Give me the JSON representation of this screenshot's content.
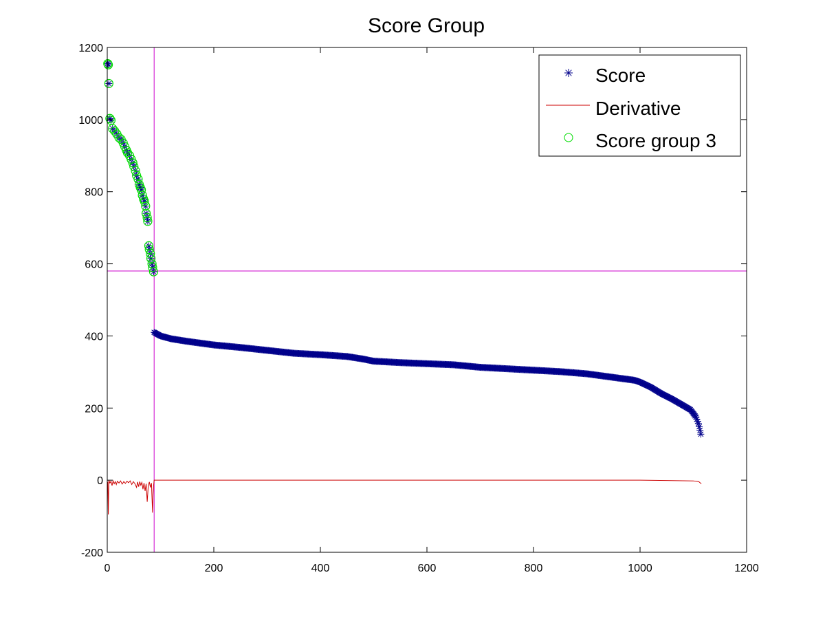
{
  "chart_data": {
    "type": "scatter",
    "title": "Score Group",
    "xlabel": "",
    "ylabel": "",
    "xlim": [
      0,
      1200
    ],
    "ylim": [
      -200,
      1200
    ],
    "x_ticks": [
      0,
      200,
      400,
      600,
      800,
      1000,
      1200
    ],
    "y_ticks": [
      -200,
      0,
      200,
      400,
      600,
      800,
      1000,
      1200
    ],
    "grid": false,
    "legend_position": "top-right",
    "colors": {
      "score": "#00008b",
      "derivative": "#cc0000",
      "group": "#00dd00",
      "threshold": "#cc00cc"
    },
    "reference_lines": {
      "vertical_x": 88,
      "horizontal_y": 580
    },
    "series": [
      {
        "name": "Score",
        "marker": "asterisk",
        "segments": [
          {
            "x_start": 1,
            "x_end": 87,
            "points": [
              [
                1,
                1155
              ],
              [
                2,
                1152
              ],
              [
                3,
                1100
              ],
              [
                5,
                1003
              ],
              [
                7,
                998
              ],
              [
                10,
                975
              ],
              [
                14,
                968
              ],
              [
                18,
                960
              ],
              [
                22,
                950
              ],
              [
                26,
                945
              ],
              [
                30,
                935
              ],
              [
                33,
                925
              ],
              [
                36,
                915
              ],
              [
                38,
                908
              ],
              [
                42,
                900
              ],
              [
                45,
                890
              ],
              [
                48,
                880
              ],
              [
                50,
                870
              ],
              [
                53,
                858
              ],
              [
                55,
                845
              ],
              [
                58,
                835
              ],
              [
                60,
                820
              ],
              [
                62,
                812
              ],
              [
                64,
                805
              ],
              [
                66,
                790
              ],
              [
                68,
                780
              ],
              [
                70,
                773
              ],
              [
                72,
                760
              ],
              [
                73,
                740
              ],
              [
                75,
                728
              ],
              [
                76,
                718
              ],
              [
                78,
                650
              ],
              [
                79,
                640
              ],
              [
                81,
                628
              ],
              [
                82,
                615
              ],
              [
                84,
                600
              ],
              [
                85,
                590
              ],
              [
                87,
                578
              ]
            ]
          },
          {
            "x_start": 88,
            "x_end": 1115,
            "points": [
              [
                88,
                410
              ],
              [
                100,
                400
              ],
              [
                120,
                392
              ],
              [
                150,
                385
              ],
              [
                200,
                375
              ],
              [
                250,
                368
              ],
              [
                300,
                360
              ],
              [
                350,
                352
              ],
              [
                400,
                348
              ],
              [
                450,
                343
              ],
              [
                480,
                336
              ],
              [
                500,
                330
              ],
              [
                550,
                326
              ],
              [
                600,
                323
              ],
              [
                650,
                320
              ],
              [
                700,
                313
              ],
              [
                750,
                309
              ],
              [
                800,
                305
              ],
              [
                850,
                301
              ],
              [
                900,
                295
              ],
              [
                950,
                285
              ],
              [
                990,
                277
              ],
              [
                1000,
                272
              ],
              [
                1020,
                258
              ],
              [
                1040,
                240
              ],
              [
                1060,
                225
              ],
              [
                1080,
                208
              ],
              [
                1095,
                195
              ],
              [
                1105,
                175
              ],
              [
                1110,
                155
              ],
              [
                1113,
                135
              ],
              [
                1115,
                120
              ]
            ]
          }
        ]
      },
      {
        "name": "Derivative",
        "marker": "line",
        "points": [
          [
            1,
            -5
          ],
          [
            2,
            -95
          ],
          [
            3,
            0
          ],
          [
            5,
            -8
          ],
          [
            7,
            -3
          ],
          [
            9,
            -15
          ],
          [
            11,
            -2
          ],
          [
            13,
            -10
          ],
          [
            15,
            -4
          ],
          [
            17,
            -12
          ],
          [
            19,
            -3
          ],
          [
            22,
            -8
          ],
          [
            25,
            -2
          ],
          [
            28,
            -11
          ],
          [
            31,
            -4
          ],
          [
            34,
            -9
          ],
          [
            37,
            -3
          ],
          [
            40,
            -7
          ],
          [
            43,
            -2
          ],
          [
            46,
            -12
          ],
          [
            49,
            -4
          ],
          [
            52,
            -10
          ],
          [
            55,
            -20
          ],
          [
            57,
            -5
          ],
          [
            59,
            -18
          ],
          [
            61,
            -4
          ],
          [
            63,
            -14
          ],
          [
            65,
            -6
          ],
          [
            67,
            -25
          ],
          [
            69,
            -8
          ],
          [
            71,
            -30
          ],
          [
            73,
            -10
          ],
          [
            75,
            -60
          ],
          [
            77,
            -15
          ],
          [
            79,
            -5
          ],
          [
            81,
            -20
          ],
          [
            83,
            -8
          ],
          [
            85,
            -90
          ],
          [
            86,
            -40
          ],
          [
            87,
            -15
          ],
          [
            88,
            0
          ],
          [
            200,
            0
          ],
          [
            400,
            0
          ],
          [
            600,
            0
          ],
          [
            800,
            0
          ],
          [
            1000,
            0
          ],
          [
            1050,
            -1
          ],
          [
            1100,
            -2
          ],
          [
            1110,
            -4
          ],
          [
            1115,
            -10
          ]
        ]
      },
      {
        "name": "Score group 3",
        "marker": "circle",
        "points": [
          [
            1,
            1155
          ],
          [
            2,
            1152
          ],
          [
            3,
            1100
          ],
          [
            5,
            1003
          ],
          [
            7,
            998
          ],
          [
            10,
            975
          ],
          [
            14,
            968
          ],
          [
            18,
            960
          ],
          [
            22,
            950
          ],
          [
            26,
            945
          ],
          [
            30,
            935
          ],
          [
            33,
            925
          ],
          [
            36,
            915
          ],
          [
            38,
            908
          ],
          [
            42,
            900
          ],
          [
            45,
            890
          ],
          [
            48,
            880
          ],
          [
            50,
            870
          ],
          [
            53,
            858
          ],
          [
            55,
            845
          ],
          [
            58,
            835
          ],
          [
            60,
            820
          ],
          [
            62,
            812
          ],
          [
            64,
            805
          ],
          [
            66,
            790
          ],
          [
            68,
            780
          ],
          [
            70,
            773
          ],
          [
            72,
            760
          ],
          [
            73,
            740
          ],
          [
            75,
            728
          ],
          [
            76,
            718
          ],
          [
            78,
            650
          ],
          [
            79,
            640
          ],
          [
            81,
            628
          ],
          [
            82,
            615
          ],
          [
            84,
            600
          ],
          [
            85,
            590
          ],
          [
            87,
            578
          ]
        ]
      }
    ]
  }
}
